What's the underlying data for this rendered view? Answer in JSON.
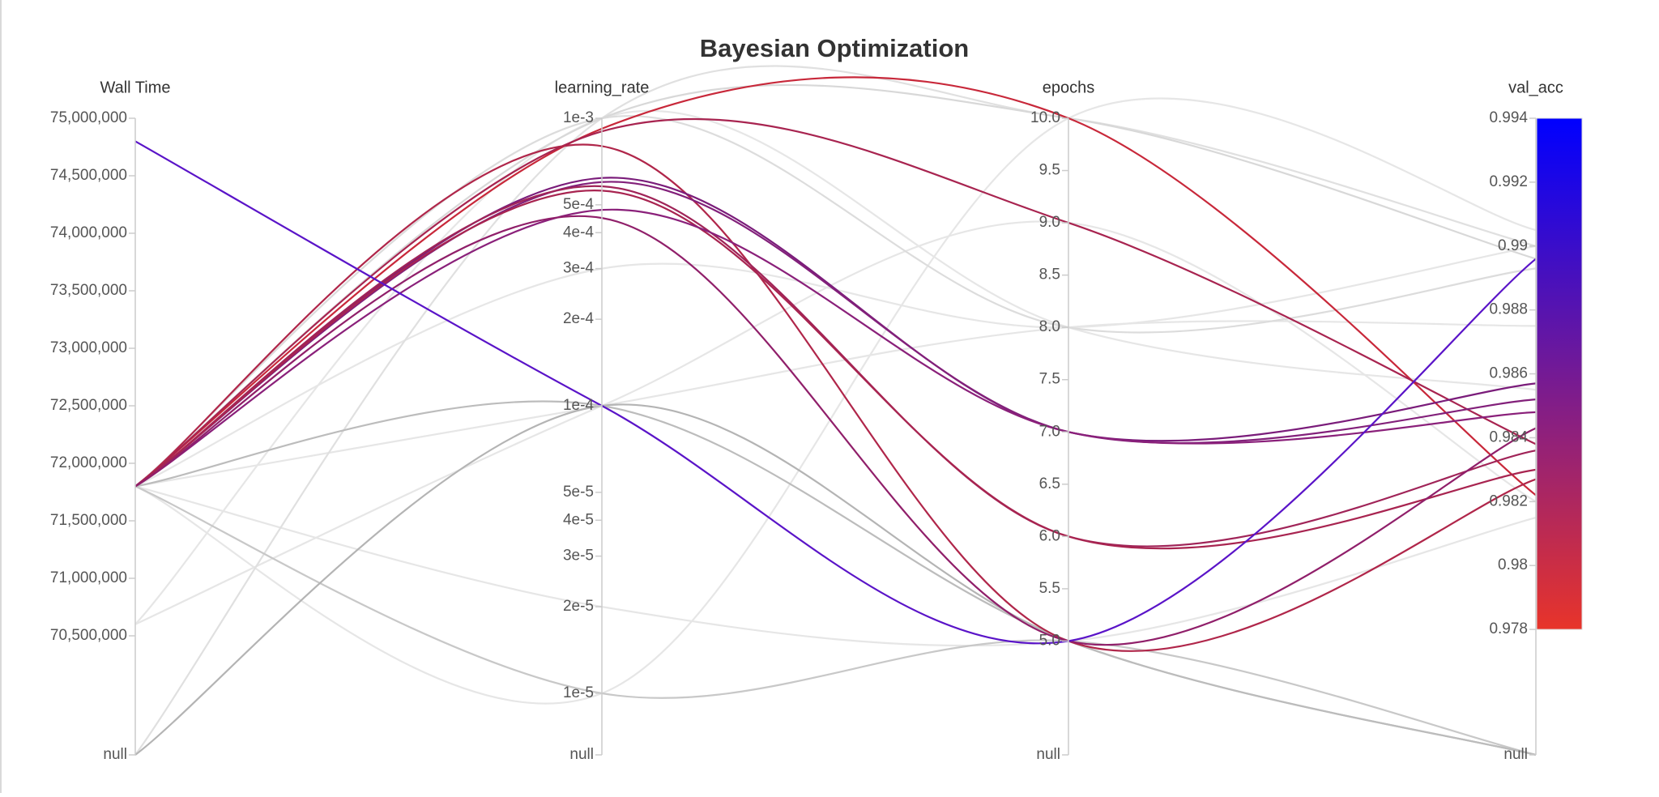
{
  "chart_data": {
    "type": "parallel",
    "title": "Bayesian Optimization",
    "null_label": "null",
    "axes": [
      {
        "name": "Wall Time",
        "log": false,
        "ylim": [
          70000000,
          75000000
        ],
        "yticks": [
          {
            "value": 70500000,
            "label": "70,500,000"
          },
          {
            "value": 71000000,
            "label": "71,000,000"
          },
          {
            "value": 71500000,
            "label": "71,500,000"
          },
          {
            "value": 72000000,
            "label": "72,000,000"
          },
          {
            "value": 72500000,
            "label": "72,500,000"
          },
          {
            "value": 73000000,
            "label": "73,000,000"
          },
          {
            "value": 73500000,
            "label": "73,500,000"
          },
          {
            "value": 74000000,
            "label": "74,000,000"
          },
          {
            "value": 74500000,
            "label": "74,500,000"
          },
          {
            "value": 75000000,
            "label": "75,000,000"
          }
        ]
      },
      {
        "name": "learning_rate",
        "log": true,
        "ylim": [
          1e-05,
          0.001
        ],
        "yticks": [
          {
            "value": 1e-05,
            "label": "1e-5"
          },
          {
            "value": 2e-05,
            "label": "2e-5"
          },
          {
            "value": 3e-05,
            "label": "3e-5"
          },
          {
            "value": 4e-05,
            "label": "4e-5"
          },
          {
            "value": 5e-05,
            "label": "5e-5"
          },
          {
            "value": 0.0001,
            "label": "1e-4"
          },
          {
            "value": 0.0002,
            "label": "2e-4"
          },
          {
            "value": 0.0003,
            "label": "3e-4"
          },
          {
            "value": 0.0004,
            "label": "4e-4"
          },
          {
            "value": 0.0005,
            "label": "5e-4"
          },
          {
            "value": 0.001,
            "label": "1e-3"
          }
        ]
      },
      {
        "name": "epochs",
        "log": false,
        "ylim": [
          4.5,
          10
        ],
        "yticks": [
          {
            "value": 5,
            "label": "5.0"
          },
          5.5,
          {
            "value": 6,
            "label": "6.0"
          },
          6.5,
          {
            "value": 7,
            "label": "7.0"
          },
          7.5,
          {
            "value": 8,
            "label": "8.0"
          },
          8.5,
          {
            "value": 9,
            "label": "9.0"
          },
          9.5,
          {
            "value": 10,
            "label": "10.0"
          }
        ]
      },
      {
        "name": "val_acc",
        "log": false,
        "ylim": [
          0.976,
          0.994
        ],
        "yticks": [
          0.978,
          0.98,
          0.982,
          0.984,
          0.986,
          0.988,
          0.99,
          0.992,
          0.994
        ]
      }
    ],
    "colorbar": {
      "colors": [
        "#e8342a",
        "#0000ff"
      ]
    },
    "runs": [
      {
        "values": [
          71800000,
          2e-05,
          5,
          0.9815
        ],
        "color": "#e6e6e6"
      },
      {
        "values": [
          71800000,
          0.0003,
          8,
          0.99
        ],
        "color": "#e6e6e6"
      },
      {
        "values": [
          71800000,
          0.0001,
          8,
          0.9875
        ],
        "color": "#e6e6e6"
      },
      {
        "values": [
          70600000,
          0.0001,
          9,
          0.982
        ],
        "color": "#e6e6e6"
      },
      {
        "values": [
          70600000,
          0.001,
          8,
          0.9855
        ],
        "color": "#e6e6e6"
      },
      {
        "values": [
          71800000,
          1e-05,
          10,
          0.9905
        ],
        "color": "#e6e6e6"
      },
      {
        "values": [
          null,
          0.001,
          10,
          0.99
        ],
        "color": "#e0e0e0"
      },
      {
        "values": [
          71800000,
          0.001,
          8,
          0.9893
        ],
        "color": "#dcdcdc"
      },
      {
        "values": [
          71800000,
          0.001,
          10,
          0.9896
        ],
        "color": "#d8d8d8"
      },
      {
        "values": [
          71800000,
          1e-05,
          5,
          null
        ],
        "color": "#c8c8c8"
      },
      {
        "values": [
          null,
          0.0001,
          5,
          null
        ],
        "color": "#b4b4b4"
      },
      {
        "values": [
          71800000,
          0.0001,
          5,
          null
        ],
        "color": "#bcbcbc"
      },
      {
        "values": [
          71800000,
          0.00092,
          10,
          0.9822
        ],
        "color": "#c8283a"
      },
      {
        "values": [
          71800000,
          0.0009,
          9,
          0.9838
        ],
        "color": "#a82450"
      },
      {
        "values": [
          71800000,
          0.0008,
          5,
          0.9827
        ],
        "color": "#b0264a"
      },
      {
        "values": [
          71800000,
          0.00062,
          7,
          0.9857
        ],
        "color": "#7a1c7a"
      },
      {
        "values": [
          71800000,
          0.0006,
          7,
          0.9852
        ],
        "color": "#82207a"
      },
      {
        "values": [
          71800000,
          0.00058,
          6,
          0.9836
        ],
        "color": "#a02458"
      },
      {
        "values": [
          71800000,
          0.00056,
          6,
          0.983
        ],
        "color": "#a82450"
      },
      {
        "values": [
          71800000,
          0.00048,
          7,
          0.9848
        ],
        "color": "#8a207a"
      },
      {
        "values": [
          71800000,
          0.00045,
          5,
          0.9843
        ],
        "color": "#901f6a"
      },
      {
        "values": [
          74800000,
          0.0001,
          5,
          0.9896
        ],
        "color": "#5a14c8"
      }
    ]
  }
}
